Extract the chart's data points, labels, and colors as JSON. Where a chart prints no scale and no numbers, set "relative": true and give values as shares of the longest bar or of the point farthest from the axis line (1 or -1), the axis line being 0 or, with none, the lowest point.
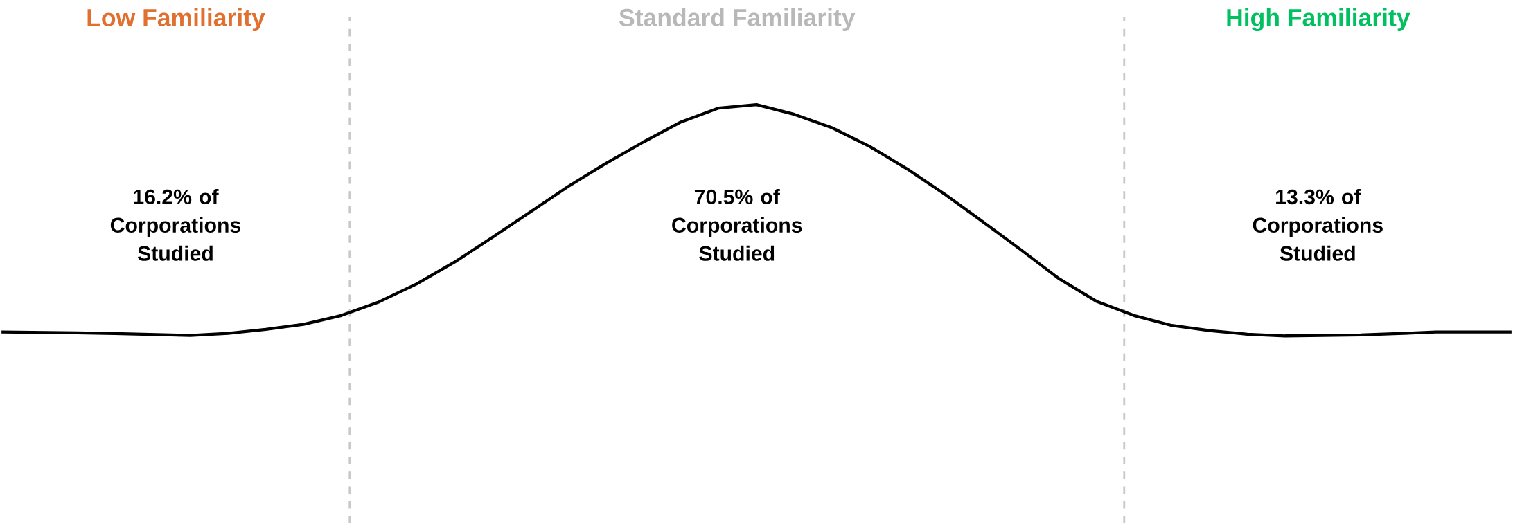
{
  "chart_data": {
    "type": "line",
    "relative": true,
    "marker": "none",
    "line_style": "solid",
    "categories": [
      null,
      null,
      null,
      null,
      null,
      null,
      null,
      null,
      null,
      null,
      null,
      null,
      null,
      null,
      null,
      null,
      null,
      null,
      null,
      null,
      null,
      null,
      null,
      null,
      null,
      null,
      null,
      null,
      null,
      null,
      null,
      null,
      null,
      null,
      null,
      null,
      null,
      null,
      null,
      null,
      null
    ],
    "series": [
      {
        "color": "#000000",
        "values": [
          0.017,
          0.015,
          0.013,
          0.01,
          0.006,
          0.002,
          0.011,
          0.028,
          0.05,
          0.088,
          0.147,
          0.225,
          0.319,
          0.426,
          0.535,
          0.645,
          0.745,
          0.838,
          0.925,
          0.985,
          1,
          0.958,
          0.9,
          0.819,
          0.721,
          0.611,
          0.493,
          0.373,
          0.249,
          0.15,
          0.088,
          0.045,
          0.023,
          0.007,
          0,
          0.002,
          0.004,
          0.01,
          0.017,
          0.017,
          0.017
        ]
      }
    ],
    "annotations": [
      "Low Familiarity",
      "Standard Familiarity",
      "High Familiarity",
      "16.2% of Corporations Studied",
      "70.5% of Corporations Studied",
      "13.3% of Corporations Studied"
    ]
  }
}
